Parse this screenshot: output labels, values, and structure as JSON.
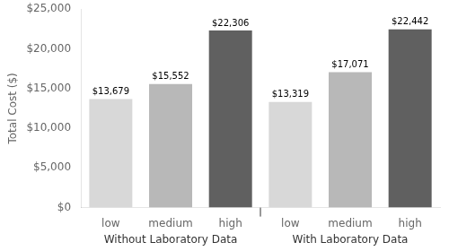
{
  "chart_data": {
    "type": "bar",
    "groups": [
      {
        "label": "Without Laboratory Data",
        "categories": [
          "low",
          "medium",
          "high"
        ],
        "values": [
          13679,
          15552,
          22306
        ],
        "value_labels": [
          "$13,679",
          "$15,552",
          "$22,306"
        ],
        "colors": [
          "#d8d8d8",
          "#b8b8b8",
          "#606060"
        ]
      },
      {
        "label": "With Laboratory Data",
        "categories": [
          "low",
          "medium",
          "high"
        ],
        "values": [
          13319,
          17071,
          22442
        ],
        "value_labels": [
          "$13,319",
          "$17,071",
          "$22,442"
        ],
        "colors": [
          "#d8d8d8",
          "#b8b8b8",
          "#606060"
        ]
      }
    ],
    "ylabel": "Total Cost ($)",
    "ylim": [
      0,
      25000
    ],
    "yticks": [
      {
        "value": 0,
        "label": "$0"
      },
      {
        "value": 5000,
        "label": "$5,000"
      },
      {
        "value": 10000,
        "label": "$10,000"
      },
      {
        "value": 15000,
        "label": "$15,000"
      },
      {
        "value": 20000,
        "label": "$20,000"
      },
      {
        "value": 25000,
        "label": "$25,000"
      }
    ],
    "grid": false,
    "data_labels": true
  }
}
